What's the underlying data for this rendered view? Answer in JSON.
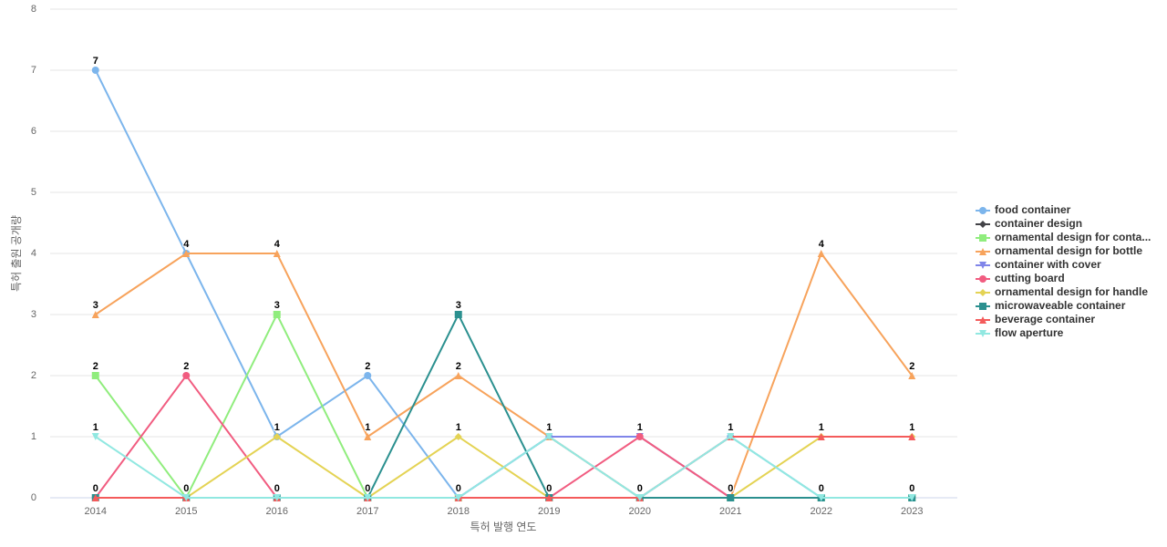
{
  "chart_data": {
    "type": "line",
    "x_label": "특허 발행 연도",
    "y_label": "특허 출원 공개량",
    "categories": [
      "2014",
      "2015",
      "2016",
      "2017",
      "2018",
      "2019",
      "2020",
      "2021",
      "2022",
      "2023"
    ],
    "ylim": [
      0,
      8
    ],
    "yticks": [
      0,
      1,
      2,
      3,
      4,
      5,
      6,
      7,
      8
    ],
    "grid": true,
    "legend": "right",
    "series": [
      {
        "name": "food container",
        "color": "#7cb5ec",
        "values": [
          7,
          4,
          1,
          2,
          0,
          1,
          0,
          1,
          0,
          0
        ]
      },
      {
        "name": "container design",
        "color": "#434348",
        "values": [
          0,
          0,
          0,
          0,
          0,
          0,
          0,
          0,
          0,
          0
        ]
      },
      {
        "name": "ornamental design for conta...",
        "color": "#90ed7d",
        "values": [
          2,
          0,
          3,
          0,
          0,
          0,
          0,
          0,
          0,
          0
        ]
      },
      {
        "name": "ornamental design for bottle",
        "color": "#f7a35c",
        "values": [
          3,
          4,
          4,
          1,
          2,
          1,
          0,
          0,
          4,
          2
        ]
      },
      {
        "name": "container with cover",
        "color": "#8085e9",
        "values": [
          0,
          0,
          0,
          0,
          0,
          1,
          1,
          0,
          0,
          0
        ]
      },
      {
        "name": "cutting board",
        "color": "#f15c80",
        "values": [
          0,
          2,
          0,
          0,
          0,
          0,
          1,
          0,
          0,
          0
        ]
      },
      {
        "name": "ornamental design for handle",
        "color": "#e4d354",
        "values": [
          0,
          0,
          1,
          0,
          1,
          0,
          0,
          0,
          1,
          1
        ]
      },
      {
        "name": "microwaveable container",
        "color": "#2b908f",
        "values": [
          0,
          0,
          0,
          0,
          3,
          0,
          0,
          0,
          0,
          0
        ]
      },
      {
        "name": "beverage container",
        "color": "#f45b5b",
        "values": [
          0,
          0,
          0,
          0,
          0,
          0,
          0,
          1,
          1,
          1
        ]
      },
      {
        "name": "flow aperture",
        "color": "#91e8e1",
        "values": [
          1,
          0,
          0,
          0,
          0,
          1,
          0,
          1,
          0,
          0
        ]
      }
    ]
  }
}
